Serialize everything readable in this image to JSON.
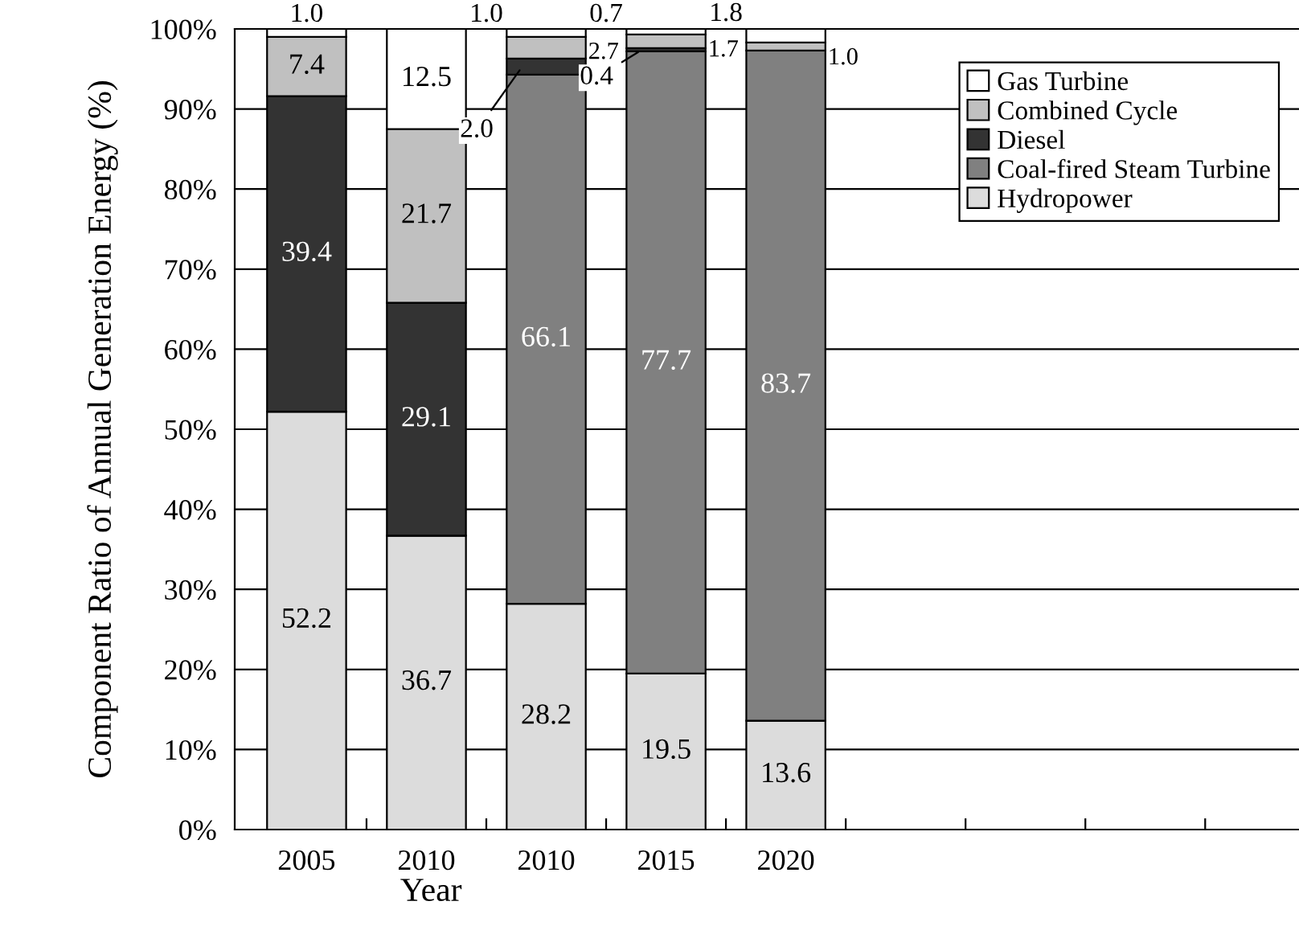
{
  "chart_data": {
    "type": "bar",
    "stacked": true,
    "xlabel": "Year",
    "ylabel": "Component Ratio of Annual Generation Energy (%)",
    "categories": [
      "2005",
      "2010",
      "2010",
      "2015",
      "2020",
      null,
      null,
      null,
      null
    ],
    "ylim": [
      0,
      100
    ],
    "yticks": [
      {
        "value": 0,
        "label": "0%"
      },
      {
        "value": 10,
        "label": "10%"
      },
      {
        "value": 20,
        "label": "20%"
      },
      {
        "value": 30,
        "label": "30%"
      },
      {
        "value": 40,
        "label": "40%"
      },
      {
        "value": 50,
        "label": "50%"
      },
      {
        "value": 60,
        "label": "60%"
      },
      {
        "value": 70,
        "label": "70%"
      },
      {
        "value": 80,
        "label": "80%"
      },
      {
        "value": 90,
        "label": "90%"
      },
      {
        "value": 100,
        "label": "100%"
      }
    ],
    "grid": "y",
    "legend": "top right",
    "series": [
      {
        "name": "Hydropower",
        "color": "#dcdcdc",
        "values": [
          52.2,
          36.7,
          28.2,
          19.5,
          13.6,
          null,
          null,
          null,
          null
        ],
        "value_labels": [
          "52.2",
          "36.7",
          "28.2",
          "19.5",
          "13.6",
          null,
          null,
          null,
          null
        ]
      },
      {
        "name": "Coal-fired Steam Turbine",
        "color": "#808080",
        "values": [
          0,
          0,
          66.1,
          77.7,
          83.7,
          null,
          null,
          null,
          null
        ],
        "value_labels": [
          null,
          null,
          "66.1",
          "77.7",
          "83.7",
          null,
          null,
          null,
          null
        ]
      },
      {
        "name": "Diesel",
        "color": "#333333",
        "values": [
          39.4,
          29.1,
          2.0,
          0.4,
          0,
          null,
          null,
          null,
          null
        ],
        "value_labels": [
          "39.4",
          "29.1",
          "2.0",
          "0.4",
          null,
          null,
          null,
          null,
          null
        ]
      },
      {
        "name": "Combined Cycle",
        "color": "#c0c0c0",
        "values": [
          7.4,
          21.7,
          2.7,
          1.7,
          1.0,
          null,
          null,
          null,
          null
        ],
        "value_labels": [
          "7.4",
          "21.7",
          "2.7",
          "1.7",
          "1.0",
          null,
          null,
          null,
          null
        ]
      },
      {
        "name": "Gas Turbine",
        "color": "#ffffff",
        "values": [
          1.0,
          12.5,
          1.0,
          0.7,
          1.8,
          null,
          null,
          null,
          null
        ],
        "value_labels": [
          "1.0",
          "12.5",
          "1.0",
          "0.7",
          "1.8",
          null,
          null,
          null,
          null
        ]
      }
    ]
  }
}
